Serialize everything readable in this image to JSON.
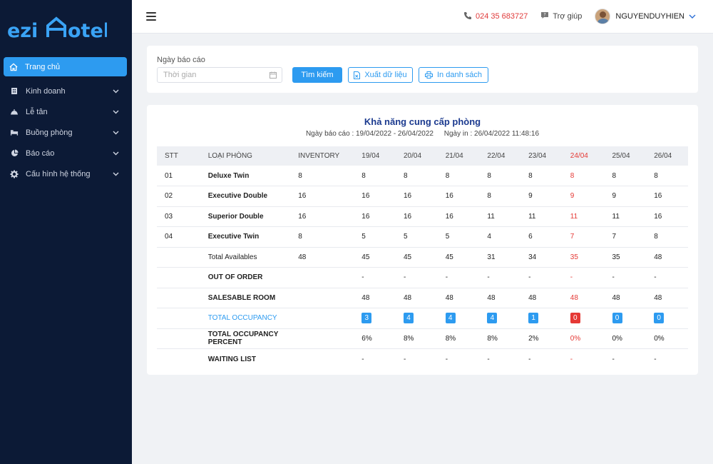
{
  "brand": {
    "logo_text_a": "ezi",
    "logo_text_b": "otel"
  },
  "sidebar": {
    "items": [
      {
        "label": "Trang chủ",
        "icon": "home-icon",
        "active": true
      },
      {
        "label": "Kinh doanh",
        "icon": "building-icon"
      },
      {
        "label": "Lễ tân",
        "icon": "bell-icon"
      },
      {
        "label": "Buồng phòng",
        "icon": "bed-icon"
      },
      {
        "label": "Báo cáo",
        "icon": "pie-chart-icon"
      },
      {
        "label": "Cấu hình hệ thống",
        "icon": "gear-icon"
      }
    ]
  },
  "topbar": {
    "phone": "024 35 683727",
    "help": "Trợ giúp",
    "username": "NGUYENDUYHIEN"
  },
  "filter": {
    "label": "Ngày báo cáo",
    "date_placeholder": "Thời gian",
    "search_label": "Tìm kiếm",
    "export_label": "Xuất dữ liệu",
    "print_label": "In danh sách"
  },
  "report": {
    "title": "Khả năng cung cấp phòng",
    "report_range": "Ngày báo cáo : 19/04/2022 - 26/04/2022",
    "print_date": "Ngày in : 26/04/2022 11:48:16",
    "columns": [
      "STT",
      "LOẠI PHÒNG",
      "INVENTORY",
      "19/04",
      "20/04",
      "21/04",
      "22/04",
      "23/04",
      "24/04",
      "25/04",
      "26/04"
    ],
    "rows": [
      {
        "stt": "01",
        "type": "Deluxe Twin",
        "inventory": "8",
        "values": [
          "8",
          "8",
          "8",
          "8",
          "8",
          "8",
          "8",
          "8"
        ]
      },
      {
        "stt": "02",
        "type": "Executive Double",
        "inventory": "16",
        "values": [
          "16",
          "16",
          "16",
          "8",
          "9",
          "9",
          "9",
          "16"
        ]
      },
      {
        "stt": "03",
        "type": "Superior Double",
        "inventory": "16",
        "values": [
          "16",
          "16",
          "16",
          "11",
          "11",
          "11",
          "11",
          "16"
        ]
      },
      {
        "stt": "04",
        "type": "Executive Twin",
        "inventory": "8",
        "values": [
          "5",
          "5",
          "5",
          "4",
          "6",
          "7",
          "7",
          "8"
        ]
      },
      {
        "stt": "",
        "type": "Total Availables",
        "inventory": "48",
        "values": [
          "45",
          "45",
          "45",
          "31",
          "34",
          "35",
          "35",
          "48"
        ]
      },
      {
        "stt": "",
        "type": "OUT OF ORDER",
        "inventory": "",
        "values": [
          "-",
          "-",
          "-",
          "-",
          "-",
          "-",
          "-",
          "-"
        ]
      },
      {
        "stt": "",
        "type": "SALESABLE ROOM",
        "inventory": "",
        "values": [
          "48",
          "48",
          "48",
          "48",
          "48",
          "48",
          "48",
          "48"
        ]
      },
      {
        "stt": "",
        "type": "TOTAL OCCUPANCY",
        "inventory": "",
        "values": [
          "3",
          "4",
          "4",
          "4",
          "1",
          "0",
          "0",
          "0"
        ]
      },
      {
        "stt": "",
        "type": "TOTAL OCCUPANCY PERCENT",
        "inventory": "",
        "values": [
          "6%",
          "8%",
          "8%",
          "8%",
          "2%",
          "0%",
          "0%",
          "0%"
        ]
      },
      {
        "stt": "",
        "type": "WAITING LIST",
        "inventory": "",
        "values": [
          "-",
          "-",
          "-",
          "-",
          "-",
          "-",
          "-",
          "-"
        ]
      }
    ],
    "highlight_col": 5,
    "colors": {
      "accent": "#2d9bf0",
      "highlight": "#e53935",
      "title": "#1b3a8f",
      "sidebar": "#0c1a36"
    }
  }
}
